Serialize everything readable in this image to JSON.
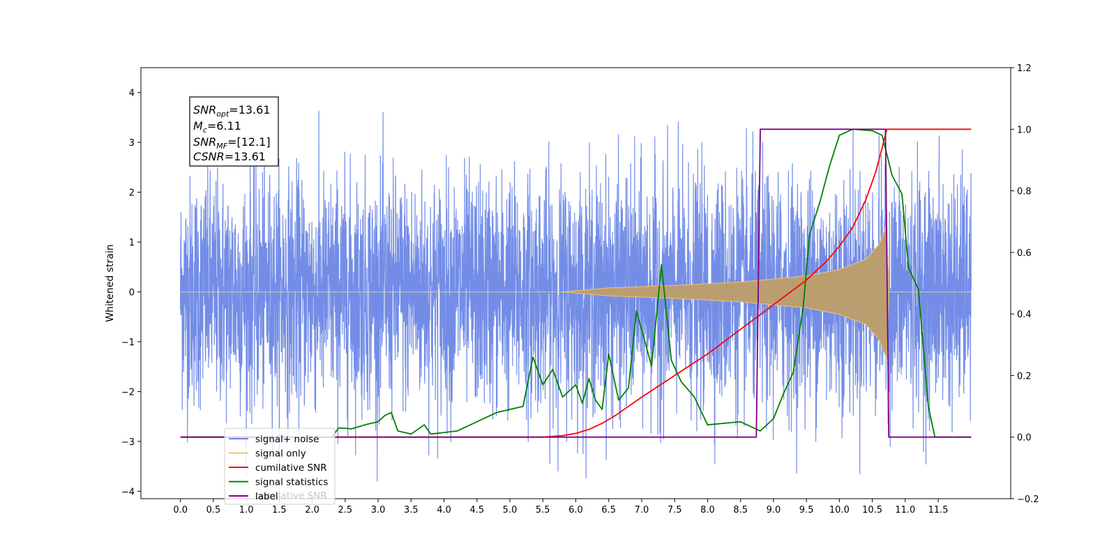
{
  "chart_data": {
    "type": "line",
    "ylabel": "Whitened strain",
    "x_ticks": [
      "0.0",
      "0.5",
      "1.0",
      "1.5",
      "2.0",
      "2.5",
      "3.0",
      "3.5",
      "4.0",
      "4.5",
      "5.0",
      "5.5",
      "6.0",
      "6.5",
      "7.0",
      "7.5",
      "8.0",
      "8.5",
      "9.0",
      "9.5",
      "10.0",
      "10.5",
      "11.0",
      "11.5"
    ],
    "xlim": [
      -0.6,
      12.6
    ],
    "ylim_left": [
      -4.15,
      4.5
    ],
    "yticks_left": [
      "4",
      "3",
      "2",
      "1",
      "0",
      "−1",
      "−2",
      "−3",
      "−4"
    ],
    "ylim_right": [
      -0.2,
      1.2
    ],
    "yticks_right": [
      "1.2",
      "1.0",
      "0.8",
      "0.6",
      "0.4",
      "0.2",
      "0.0",
      "−0.2"
    ],
    "legend_location": "lower left",
    "legend": [
      {
        "label": "signal+ noise",
        "color": "#6b87e6"
      },
      {
        "label": "signal only",
        "color": "#f5c272"
      },
      {
        "label": "cumilative SNR",
        "color": "#ff0000"
      },
      {
        "label": "signal statistics",
        "color": "#008000"
      },
      {
        "label": "label",
        "color": "#800080"
      }
    ],
    "legend_overlap_text": "cumilative SNR",
    "annotation": {
      "lines": [
        {
          "main": "SNR",
          "sub": "opt",
          "value": "=13.61"
        },
        {
          "main": "M",
          "sub": "c",
          "value": "=6.11"
        },
        {
          "main": "SNR",
          "sub": "MF",
          "value": "=[12.1]"
        },
        {
          "main": "CSNR",
          "sub": "",
          "value": "=13.61"
        }
      ]
    },
    "series": [
      {
        "name": "signal+ noise",
        "axis": "left",
        "color": "#6b87e6",
        "description": "dense whitened noise, amplitude about ±3.5",
        "x_range": [
          0.0,
          12.0
        ],
        "envelope": 2.7
      },
      {
        "name": "signal only",
        "axis": "left",
        "color": "#f5c272",
        "description": "chirp, amplitude grows from ~0 at 6.0 to ~1.3 at 10.7, then ends",
        "envelope_points": [
          [
            0.0,
            0.0
          ],
          [
            5.8,
            0.0
          ],
          [
            6.5,
            0.08
          ],
          [
            7.5,
            0.13
          ],
          [
            8.5,
            0.2
          ],
          [
            9.5,
            0.32
          ],
          [
            10.0,
            0.45
          ],
          [
            10.4,
            0.65
          ],
          [
            10.6,
            0.95
          ],
          [
            10.72,
            1.35
          ],
          [
            10.75,
            0.0
          ],
          [
            12.0,
            0.0
          ]
        ]
      },
      {
        "name": "cumilative SNR",
        "axis": "right",
        "color": "#ff0000",
        "points": [
          [
            0.0,
            0.0
          ],
          [
            5.5,
            0.0
          ],
          [
            5.8,
            0.005
          ],
          [
            6.0,
            0.012
          ],
          [
            6.2,
            0.025
          ],
          [
            6.4,
            0.045
          ],
          [
            6.6,
            0.07
          ],
          [
            6.8,
            0.1
          ],
          [
            7.0,
            0.13
          ],
          [
            7.5,
            0.2
          ],
          [
            8.0,
            0.27
          ],
          [
            8.5,
            0.35
          ],
          [
            9.0,
            0.43
          ],
          [
            9.5,
            0.51
          ],
          [
            9.8,
            0.57
          ],
          [
            10.0,
            0.62
          ],
          [
            10.2,
            0.68
          ],
          [
            10.4,
            0.77
          ],
          [
            10.55,
            0.86
          ],
          [
            10.65,
            0.94
          ],
          [
            10.72,
            1.0
          ],
          [
            12.0,
            1.0
          ]
        ]
      },
      {
        "name": "signal statistics",
        "axis": "right",
        "color": "#008000",
        "points": [
          [
            0.0,
            0.0
          ],
          [
            2.3,
            0.0
          ],
          [
            2.4,
            0.03
          ],
          [
            2.6,
            0.027
          ],
          [
            2.8,
            0.04
          ],
          [
            3.0,
            0.05
          ],
          [
            3.1,
            0.07
          ],
          [
            3.2,
            0.08
          ],
          [
            3.3,
            0.02
          ],
          [
            3.5,
            0.01
          ],
          [
            3.7,
            0.04
          ],
          [
            3.8,
            0.01
          ],
          [
            4.2,
            0.02
          ],
          [
            4.4,
            0.04
          ],
          [
            4.6,
            0.06
          ],
          [
            4.8,
            0.08
          ],
          [
            5.0,
            0.09
          ],
          [
            5.2,
            0.1
          ],
          [
            5.35,
            0.26
          ],
          [
            5.5,
            0.17
          ],
          [
            5.65,
            0.22
          ],
          [
            5.8,
            0.13
          ],
          [
            6.0,
            0.17
          ],
          [
            6.1,
            0.11
          ],
          [
            6.2,
            0.19
          ],
          [
            6.3,
            0.12
          ],
          [
            6.4,
            0.09
          ],
          [
            6.5,
            0.27
          ],
          [
            6.65,
            0.12
          ],
          [
            6.8,
            0.16
          ],
          [
            6.92,
            0.41
          ],
          [
            7.05,
            0.31
          ],
          [
            7.15,
            0.23
          ],
          [
            7.3,
            0.56
          ],
          [
            7.45,
            0.25
          ],
          [
            7.6,
            0.18
          ],
          [
            7.8,
            0.13
          ],
          [
            8.0,
            0.04
          ],
          [
            8.5,
            0.05
          ],
          [
            8.8,
            0.02
          ],
          [
            9.0,
            0.06
          ],
          [
            9.15,
            0.14
          ],
          [
            9.3,
            0.21
          ],
          [
            9.45,
            0.42
          ],
          [
            9.55,
            0.66
          ],
          [
            9.7,
            0.76
          ],
          [
            9.85,
            0.88
          ],
          [
            10.0,
            0.98
          ],
          [
            10.2,
            1.0
          ],
          [
            10.5,
            0.995
          ],
          [
            10.65,
            0.98
          ],
          [
            10.8,
            0.85
          ],
          [
            10.95,
            0.79
          ],
          [
            11.05,
            0.55
          ],
          [
            11.2,
            0.48
          ],
          [
            11.35,
            0.1
          ],
          [
            11.45,
            0.0
          ],
          [
            12.0,
            0.0
          ]
        ]
      },
      {
        "name": "label",
        "axis": "right",
        "color": "#800080",
        "points": [
          [
            0.0,
            0.0
          ],
          [
            8.74,
            0.0
          ],
          [
            8.8,
            1.0
          ],
          [
            10.7,
            1.0
          ],
          [
            10.75,
            0.0
          ],
          [
            12.0,
            0.0
          ]
        ]
      }
    ]
  }
}
